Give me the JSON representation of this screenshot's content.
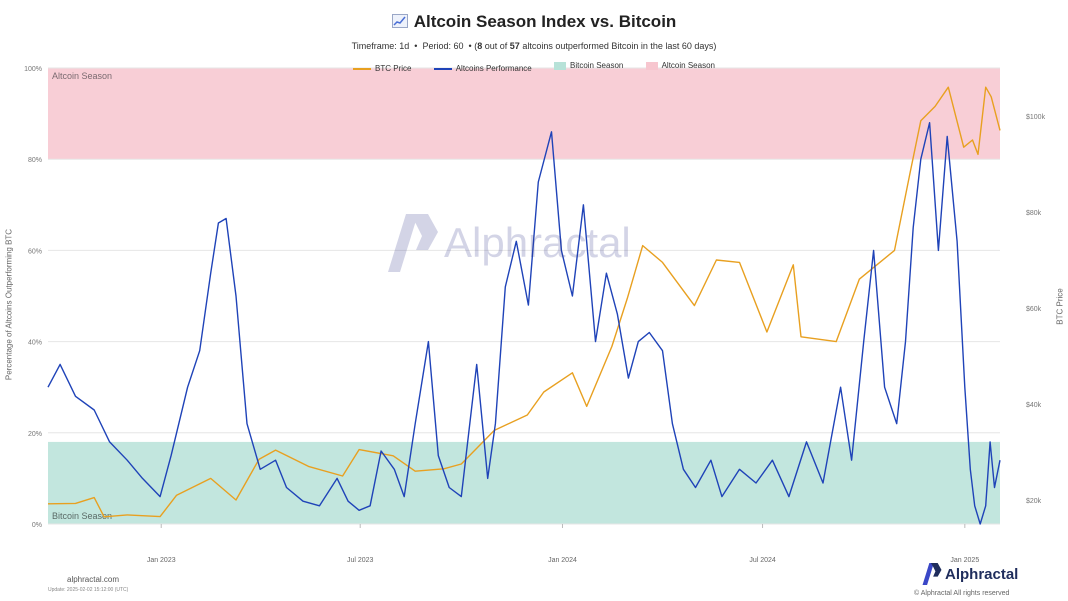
{
  "header": {
    "title": "Altcoin Season Index vs. Bitcoin",
    "subtitle_timeframe_label": "Timeframe:",
    "subtitle_timeframe": "1d",
    "subtitle_period_label": "Period:",
    "subtitle_period": "60",
    "subtitle_count": "8",
    "subtitle_out_of": "out of",
    "subtitle_total": "57",
    "subtitle_tail": "altcoins outperformed Bitcoin in the last 60 days)"
  },
  "legend": [
    {
      "label": "BTC Price",
      "kind": "line",
      "color": "#e8a020"
    },
    {
      "label": "Altcoins Performance",
      "kind": "line",
      "color": "#1f43b8"
    },
    {
      "label": "Bitcoin Season",
      "kind": "box",
      "color": "#b7e2d8"
    },
    {
      "label": "Altcoin Season",
      "kind": "box",
      "color": "#f7c6cf"
    }
  ],
  "axes": {
    "left_label": "Percentage of Altcoins Outperforming BTC",
    "right_label": "BTC Price",
    "left_ticks": [
      "0%",
      "20%",
      "40%",
      "60%",
      "80%",
      "100%"
    ],
    "right_ticks": [
      "$20k",
      "$40k",
      "$60k",
      "$80k",
      "$100k"
    ],
    "x_ticks": [
      "Jan 2023",
      "Jul 2023",
      "Jan 2024",
      "Jul 2024",
      "Jan 2025"
    ]
  },
  "zones": {
    "altcoin_season_label": "Altcoin Season",
    "bitcoin_season_label": "Bitcoin Season"
  },
  "footer": {
    "site": "alphractal.com",
    "updated": "Update: 2025-02-02 15:12:00 (UTC)",
    "brand": "Alphractal",
    "copyright": "© Alphractal All rights reserved"
  },
  "watermark": "Alphractal",
  "colors": {
    "btc": "#e8a020",
    "alt": "#1f43b8",
    "altcoin_zone": "#f7c6cf",
    "bitcoin_zone": "#b7e2d8",
    "grid": "#e6e6e6"
  },
  "chart_data": {
    "type": "line",
    "title": "Altcoin Season Index vs. Bitcoin",
    "x_range": [
      "2022-09-20",
      "2025-02-02"
    ],
    "y_left": {
      "label": "Percentage of Altcoins Outperforming BTC",
      "range": [
        0,
        100
      ],
      "unit": "%"
    },
    "y_right": {
      "label": "BTC Price",
      "range": [
        15000,
        110000
      ],
      "unit": "$"
    },
    "bands": [
      {
        "name": "Altcoin Season",
        "y_from": 80,
        "y_to": 100
      },
      {
        "name": "Bitcoin Season",
        "y_from": 0,
        "y_to": 18
      }
    ],
    "grid": true,
    "legend_position": "top-center",
    "series": [
      {
        "name": "BTC Price",
        "axis": "right",
        "color": "#e8a020",
        "points": [
          [
            "2022-09-20",
            19200
          ],
          [
            "2022-10-15",
            19300
          ],
          [
            "2022-11-01",
            20500
          ],
          [
            "2022-11-10",
            16500
          ],
          [
            "2022-12-01",
            16900
          ],
          [
            "2022-12-31",
            16550
          ],
          [
            "2023-01-15",
            21000
          ],
          [
            "2023-02-15",
            24500
          ],
          [
            "2023-03-10",
            20000
          ],
          [
            "2023-03-31",
            28500
          ],
          [
            "2023-04-15",
            30400
          ],
          [
            "2023-05-15",
            27000
          ],
          [
            "2023-06-15",
            25000
          ],
          [
            "2023-06-30",
            30500
          ],
          [
            "2023-07-31",
            29200
          ],
          [
            "2023-08-20",
            26000
          ],
          [
            "2023-09-15",
            26500
          ],
          [
            "2023-10-01",
            27500
          ],
          [
            "2023-10-31",
            34500
          ],
          [
            "2023-11-30",
            37700
          ],
          [
            "2023-12-15",
            42500
          ],
          [
            "2024-01-10",
            46500
          ],
          [
            "2024-01-23",
            39500
          ],
          [
            "2024-02-15",
            52000
          ],
          [
            "2024-02-29",
            62000
          ],
          [
            "2024-03-14",
            73000
          ],
          [
            "2024-04-01",
            69500
          ],
          [
            "2024-04-30",
            60500
          ],
          [
            "2024-05-20",
            70000
          ],
          [
            "2024-06-10",
            69500
          ],
          [
            "2024-07-05",
            55000
          ],
          [
            "2024-07-29",
            69000
          ],
          [
            "2024-08-05",
            54000
          ],
          [
            "2024-09-06",
            53000
          ],
          [
            "2024-09-27",
            66000
          ],
          [
            "2024-10-29",
            72000
          ],
          [
            "2024-11-12",
            88000
          ],
          [
            "2024-11-22",
            99000
          ],
          [
            "2024-12-05",
            102000
          ],
          [
            "2024-12-17",
            106000
          ],
          [
            "2024-12-31",
            93500
          ],
          [
            "2025-01-08",
            95000
          ],
          [
            "2025-01-13",
            92000
          ],
          [
            "2025-01-20",
            106000
          ],
          [
            "2025-01-25",
            104000
          ],
          [
            "2025-02-02",
            97000
          ]
        ]
      },
      {
        "name": "Altcoins Performance",
        "axis": "left",
        "color": "#1f43b8",
        "points": [
          [
            "2022-09-20",
            30
          ],
          [
            "2022-10-01",
            35
          ],
          [
            "2022-10-15",
            28
          ],
          [
            "2022-11-01",
            25
          ],
          [
            "2022-11-15",
            18
          ],
          [
            "2022-12-01",
            14
          ],
          [
            "2022-12-15",
            10
          ],
          [
            "2022-12-31",
            6
          ],
          [
            "2023-01-10",
            15
          ],
          [
            "2023-01-25",
            30
          ],
          [
            "2023-02-05",
            38
          ],
          [
            "2023-02-15",
            55
          ],
          [
            "2023-02-22",
            66
          ],
          [
            "2023-03-01",
            67
          ],
          [
            "2023-03-10",
            50
          ],
          [
            "2023-03-20",
            22
          ],
          [
            "2023-04-01",
            12
          ],
          [
            "2023-04-15",
            14
          ],
          [
            "2023-04-25",
            8
          ],
          [
            "2023-05-10",
            5
          ],
          [
            "2023-05-25",
            4
          ],
          [
            "2023-06-10",
            10
          ],
          [
            "2023-06-20",
            5
          ],
          [
            "2023-06-30",
            3
          ],
          [
            "2023-07-10",
            4
          ],
          [
            "2023-07-20",
            16
          ],
          [
            "2023-08-01",
            12
          ],
          [
            "2023-08-10",
            6
          ],
          [
            "2023-08-20",
            22
          ],
          [
            "2023-09-01",
            40
          ],
          [
            "2023-09-10",
            15
          ],
          [
            "2023-09-20",
            8
          ],
          [
            "2023-10-01",
            6
          ],
          [
            "2023-10-15",
            35
          ],
          [
            "2023-10-25",
            10
          ],
          [
            "2023-11-01",
            22
          ],
          [
            "2023-11-10",
            52
          ],
          [
            "2023-11-20",
            62
          ],
          [
            "2023-12-01",
            48
          ],
          [
            "2023-12-10",
            75
          ],
          [
            "2023-12-22",
            86
          ],
          [
            "2023-12-31",
            60
          ],
          [
            "2024-01-10",
            50
          ],
          [
            "2024-01-20",
            70
          ],
          [
            "2024-01-31",
            40
          ],
          [
            "2024-02-10",
            55
          ],
          [
            "2024-02-20",
            46
          ],
          [
            "2024-03-01",
            32
          ],
          [
            "2024-03-10",
            40
          ],
          [
            "2024-03-20",
            42
          ],
          [
            "2024-04-01",
            38
          ],
          [
            "2024-04-10",
            22
          ],
          [
            "2024-04-20",
            12
          ],
          [
            "2024-05-01",
            8
          ],
          [
            "2024-05-15",
            14
          ],
          [
            "2024-05-25",
            6
          ],
          [
            "2024-06-10",
            12
          ],
          [
            "2024-06-25",
            9
          ],
          [
            "2024-07-10",
            14
          ],
          [
            "2024-07-25",
            6
          ],
          [
            "2024-08-10",
            18
          ],
          [
            "2024-08-25",
            9
          ],
          [
            "2024-09-10",
            30
          ],
          [
            "2024-09-20",
            14
          ],
          [
            "2024-10-01",
            40
          ],
          [
            "2024-10-10",
            60
          ],
          [
            "2024-10-20",
            30
          ],
          [
            "2024-10-31",
            22
          ],
          [
            "2024-11-08",
            40
          ],
          [
            "2024-11-15",
            65
          ],
          [
            "2024-11-22",
            80
          ],
          [
            "2024-11-30",
            88
          ],
          [
            "2024-12-08",
            60
          ],
          [
            "2024-12-16",
            85
          ],
          [
            "2024-12-25",
            62
          ],
          [
            "2025-01-01",
            30
          ],
          [
            "2025-01-06",
            12
          ],
          [
            "2025-01-10",
            4
          ],
          [
            "2025-01-15",
            0
          ],
          [
            "2025-01-20",
            4
          ],
          [
            "2025-01-24",
            18
          ],
          [
            "2025-01-28",
            8
          ],
          [
            "2025-02-02",
            14
          ]
        ]
      }
    ]
  }
}
